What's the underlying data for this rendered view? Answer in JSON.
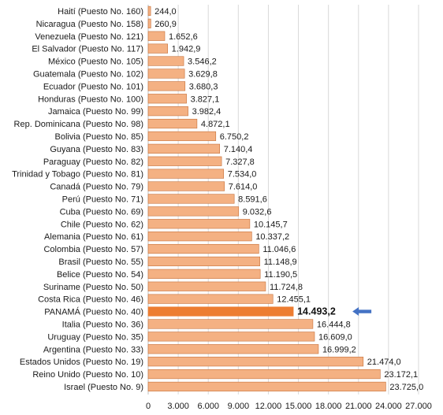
{
  "chart_data": {
    "type": "bar",
    "orientation": "horizontal",
    "categories": [
      "Haití (Puesto No. 160)",
      "Nicaragua (Puesto No. 158)",
      "Venezuela (Puesto No. 121)",
      "El Salvador (Puesto No. 117)",
      "México (Puesto No. 105)",
      "Guatemala (Puesto No. 102)",
      "Ecuador (Puesto No. 101)",
      "Honduras (Puesto No. 100)",
      "Jamaica (Puesto No. 99)",
      "Rep. Dominicana (Puesto No. 98)",
      "Bolivia (Puesto No. 85)",
      "Guyana (Puesto No. 83)",
      "Paraguay (Puesto No. 82)",
      "Trinidad y Tobago (Puesto No. 81)",
      "Canadá (Puesto No. 79)",
      "Perú (Puesto No. 71)",
      "Cuba (Puesto No. 69)",
      "Chile (Puesto No. 62)",
      "Alemania (Puesto No. 61)",
      "Colombia (Puesto No. 57)",
      "Brasil (Puesto No. 55)",
      "Belice (Puesto No. 54)",
      "Suriname (Puesto No. 50)",
      "Costa Rica (Puesto No. 46)",
      "PANAMÁ (Puesto No. 40)",
      "Italia (Puesto No. 36)",
      "Uruguay (Puesto No. 35)",
      "Argentina (Puesto No. 33)",
      "Estados Unidos (Puesto No. 19)",
      "Reino Unido (Puesto No. 10)",
      "Israel (Puesto No. 9)"
    ],
    "values": [
      244.0,
      260.9,
      1652.6,
      1942.9,
      3546.2,
      3629.8,
      3680.3,
      3827.1,
      3982.4,
      4872.1,
      6750.2,
      7140.4,
      7327.8,
      7534.0,
      7614.0,
      8591.6,
      9032.6,
      10145.7,
      10337.2,
      11046.6,
      11148.9,
      11190.5,
      11724.8,
      12455.1,
      14493.2,
      16444.8,
      16609.0,
      16999.2,
      21474.0,
      23172.1,
      23725.0
    ],
    "value_labels": [
      "244,0",
      "260,9",
      "1.652,6",
      "1.942,9",
      "3.546,2",
      "3.629,8",
      "3.680,3",
      "3.827,1",
      "3.982,4",
      "4.872,1",
      "6.750,2",
      "7.140,4",
      "7.327,8",
      "7.534,0",
      "7.614,0",
      "8.591,6",
      "9.032,6",
      "10.145,7",
      "10.337,2",
      "11.046,6",
      "11.148,9",
      "11.190,5",
      "11.724,8",
      "12.455,1",
      "14.493,2",
      "16.444,8",
      "16.609,0",
      "16.999,2",
      "21.474,0",
      "23.172,1",
      "23.725,0"
    ],
    "highlight_category": "PANAMÁ (Puesto No. 40)",
    "xlim": [
      0,
      27000
    ],
    "x_ticks": [
      0,
      3000,
      6000,
      9000,
      12000,
      15000,
      18000,
      21000,
      24000,
      27000
    ],
    "x_tick_labels": [
      "0",
      "3.000",
      "6.000",
      "9.000",
      "12.000",
      "15.000",
      "18.000",
      "21.000",
      "24.000",
      "27.000"
    ],
    "title": "",
    "xlabel": "",
    "ylabel": "",
    "grid": true,
    "legend": "none",
    "colors": {
      "bar_fill": "#F4B183",
      "bar_stroke": "#C5703A",
      "highlight_fill": "#ED7D31",
      "arrow": "#4472C4",
      "grid": "#D9D9D9"
    }
  }
}
